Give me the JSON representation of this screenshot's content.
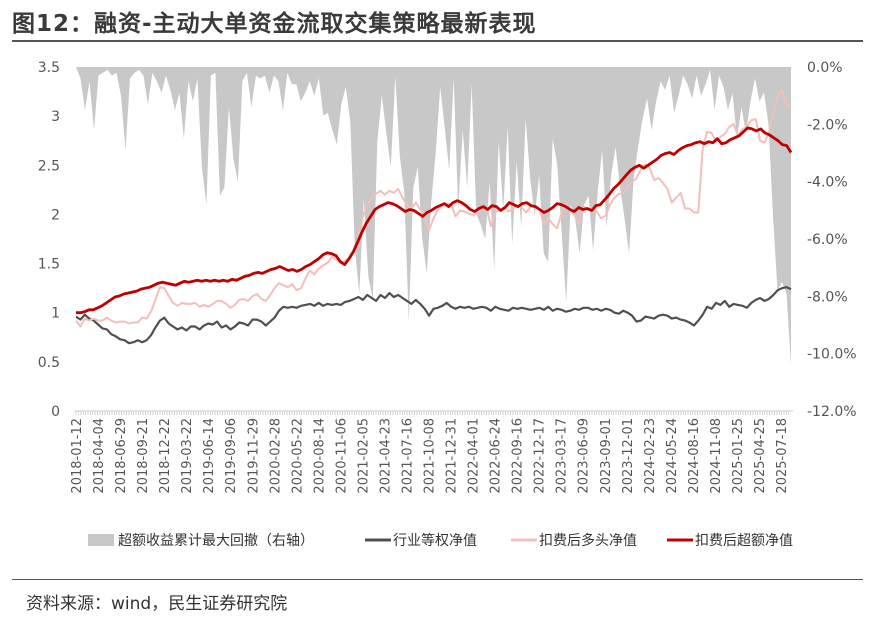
{
  "title": "图12：融资-主动大单资金流取交集策略最新表现",
  "source": "资料来源：wind，民生证券研究院",
  "chart_data": {
    "type": "line",
    "left_axis": {
      "ticks": [
        "0",
        "0.5",
        "1",
        "1.5",
        "2",
        "2.5",
        "3",
        "3.5"
      ],
      "ylim": [
        0,
        3.5
      ]
    },
    "right_axis": {
      "ticks": [
        "-12.0%",
        "-10.0%",
        "-8.0%",
        "-6.0%",
        "-4.0%",
        "-2.0%",
        "0.0%"
      ],
      "ylim": [
        -12.0,
        0.0
      ]
    },
    "x_ticks": [
      "2018-01-12",
      "2018-04-04",
      "2018-06-29",
      "2018-09-21",
      "2018-12-22",
      "2019-03-22",
      "2019-06-14",
      "2019-09-06",
      "2019-11-29",
      "2020-02-28",
      "2020-05-22",
      "2020-08-14",
      "2020-11-06",
      "2021-02-05",
      "2021-04-23",
      "2021-07-16",
      "2021-10-08",
      "2021-12-31",
      "2022-04-01",
      "2022-06-24",
      "2022-09-16",
      "2022-12-17",
      "2023-03-17",
      "2023-06-09",
      "2023-09-01",
      "2023-12-01",
      "2024-02-23",
      "2024-05-24",
      "2024-08-16",
      "2024-11-08",
      "2025-01-25",
      "2025-04-25",
      "2025-07-18"
    ],
    "series": [
      {
        "name": "超额收益累计最大回撤（右轴）",
        "type": "area",
        "axis": "right",
        "color": "#c8c8c8",
        "values": [
          0.0,
          -0.4,
          -1.5,
          -0.5,
          -2.2,
          -0.3,
          -0.2,
          -0.1,
          -0.3,
          -0.2,
          -1.0,
          -2.9,
          -0.4,
          -0.2,
          -0.1,
          -0.3,
          -1.3,
          -0.2,
          -0.5,
          -0.9,
          -0.3,
          -0.8,
          -1.5,
          -0.9,
          -2.5,
          -0.5,
          -1.2,
          -0.4,
          -3.5,
          -4.8,
          -0.3,
          -0.2,
          -4.5,
          -4.2,
          -1.4,
          -3.2,
          -4.0,
          -0.5,
          -0.2,
          -1.4,
          -0.3,
          -0.4,
          -0.3,
          -0.9,
          -0.3,
          -0.5,
          -1.5,
          -0.2,
          -0.6,
          -0.6,
          -1.2,
          -0.9,
          -0.5,
          -1.0,
          -0.4,
          -1.7,
          -1.6,
          -2.2,
          -2.7,
          -1.3,
          -0.7,
          -1.9,
          -6.3,
          -7.9,
          -4.6,
          -7.3,
          -8.1,
          -2.6,
          -1.0,
          -2.3,
          -3.5,
          -0.3,
          -3.1,
          -4.4,
          -8.9,
          -4.2,
          -3.5,
          -6.0,
          -7.2,
          -4.7,
          -3.0,
          -0.7,
          -2.1,
          -3.6,
          -0.4,
          -5.0,
          -2.2,
          -4.2,
          -0.6,
          -5.1,
          -5.5,
          -6.0,
          -4.0,
          -7.1,
          -2.6,
          -5.0,
          -2.1,
          -6.2,
          -3.3,
          -5.6,
          -1.8,
          -3.9,
          -5.2,
          -3.8,
          -6.5,
          -6.8,
          -2.5,
          -3.4,
          -5.8,
          -8.2,
          -4.8,
          -5.3,
          -6.5,
          -4.8,
          -4.5,
          -6.4,
          -4.4,
          -2.9,
          -5.6,
          -3.8,
          -2.8,
          -4.2,
          -5.3,
          -6.5,
          -3.9,
          -2.8,
          -1.8,
          -1.1,
          -2.2,
          -1.2,
          -0.5,
          -0.8,
          -0.3,
          -1.6,
          -1.0,
          -0.3,
          -0.6,
          -1.1,
          -0.3,
          -1.0,
          -0.6,
          -0.1,
          -1.5,
          -0.3,
          -0.7,
          -1.5,
          -0.9,
          -2.5,
          -1.4,
          -2.3,
          -1.2,
          -0.4,
          -1.2,
          -0.9,
          -2.0,
          -5.2,
          -7.8,
          -7.5,
          -7.9,
          -10.4
        ]
      },
      {
        "name": "行业等权净值",
        "type": "line",
        "axis": "left",
        "color": "#505050",
        "values": [
          0.96,
          0.93,
          0.98,
          0.94,
          0.92,
          0.88,
          0.84,
          0.83,
          0.78,
          0.76,
          0.73,
          0.72,
          0.69,
          0.7,
          0.72,
          0.7,
          0.72,
          0.77,
          0.85,
          0.92,
          0.95,
          0.89,
          0.86,
          0.83,
          0.85,
          0.82,
          0.86,
          0.86,
          0.83,
          0.87,
          0.89,
          0.88,
          0.91,
          0.85,
          0.87,
          0.83,
          0.86,
          0.9,
          0.89,
          0.87,
          0.93,
          0.93,
          0.91,
          0.87,
          0.91,
          0.95,
          1.02,
          1.06,
          1.05,
          1.06,
          1.05,
          1.07,
          1.08,
          1.09,
          1.07,
          1.1,
          1.07,
          1.09,
          1.08,
          1.09,
          1.08,
          1.11,
          1.12,
          1.14,
          1.16,
          1.13,
          1.18,
          1.15,
          1.12,
          1.18,
          1.15,
          1.2,
          1.16,
          1.18,
          1.15,
          1.12,
          1.09,
          1.13,
          1.09,
          1.04,
          0.97,
          1.04,
          1.05,
          1.07,
          1.1,
          1.06,
          1.04,
          1.06,
          1.05,
          1.06,
          1.04,
          1.05,
          1.06,
          1.05,
          1.02,
          1.06,
          1.04,
          1.03,
          1.02,
          1.05,
          1.04,
          1.05,
          1.04,
          1.03,
          1.04,
          1.05,
          1.03,
          1.06,
          1.02,
          1.04,
          1.03,
          1.01,
          1.02,
          1.04,
          1.03,
          1.05,
          1.05,
          1.03,
          1.04,
          1.02,
          1.04,
          1.03,
          1.0,
          0.99,
          1.02,
          1.0,
          0.97,
          0.91,
          0.92,
          0.96,
          0.95,
          0.94,
          0.97,
          0.98,
          0.97,
          0.94,
          0.95,
          0.93,
          0.92,
          0.9,
          0.87,
          0.92,
          0.98,
          1.06,
          1.04,
          1.1,
          1.08,
          1.12,
          1.06,
          1.09,
          1.08,
          1.07,
          1.05,
          1.1,
          1.13,
          1.15,
          1.12,
          1.14,
          1.18,
          1.23,
          1.25,
          1.26,
          1.24
        ]
      },
      {
        "name": "扣费后多头净值",
        "type": "line",
        "axis": "left",
        "color": "#f0c0bc",
        "values": [
          0.92,
          0.86,
          0.94,
          0.92,
          0.94,
          0.92,
          0.92,
          0.95,
          0.92,
          0.9,
          0.91,
          0.91,
          0.89,
          0.9,
          0.9,
          0.95,
          0.94,
          1.01,
          1.13,
          1.26,
          1.25,
          1.17,
          1.1,
          1.07,
          1.1,
          1.09,
          1.09,
          1.1,
          1.06,
          1.08,
          1.06,
          1.09,
          1.12,
          1.12,
          1.09,
          1.05,
          1.08,
          1.13,
          1.14,
          1.12,
          1.17,
          1.19,
          1.14,
          1.12,
          1.18,
          1.25,
          1.3,
          1.28,
          1.26,
          1.29,
          1.23,
          1.25,
          1.35,
          1.43,
          1.39,
          1.45,
          1.48,
          1.51,
          1.57,
          1.54,
          1.5,
          1.53,
          1.55,
          1.63,
          1.78,
          1.98,
          2.09,
          2.18,
          2.21,
          2.24,
          2.2,
          2.24,
          2.22,
          2.26,
          2.17,
          2.1,
          2.06,
          2.12,
          2.05,
          1.98,
          1.84,
          1.96,
          2.05,
          2.09,
          2.11,
          2.1,
          1.98,
          2.04,
          2.03,
          2.01,
          1.99,
          2.02,
          2.04,
          2.07,
          1.88,
          2.02,
          2.05,
          2.07,
          2.03,
          2.06,
          2.09,
          2.07,
          2.02,
          2.08,
          2.09,
          2.05,
          1.9,
          1.96,
          1.9,
          1.86,
          2.01,
          2.11,
          2.04,
          1.99,
          1.89,
          2.08,
          2.04,
          2.08,
          2.03,
          1.96,
          1.99,
          2.1,
          2.17,
          2.21,
          2.21,
          2.29,
          2.33,
          2.37,
          2.46,
          2.51,
          2.47,
          2.35,
          2.37,
          2.32,
          2.26,
          2.12,
          2.17,
          2.22,
          2.06,
          2.06,
          2.02,
          2.02,
          2.67,
          2.84,
          2.83,
          2.74,
          2.79,
          2.82,
          2.89,
          2.92,
          2.8,
          2.87,
          2.89,
          2.96,
          2.97,
          2.75,
          2.73,
          2.83,
          3.02,
          3.21,
          3.26,
          3.1,
          3.11
        ]
      },
      {
        "name": "扣费后超额净值",
        "type": "line",
        "axis": "left",
        "color": "#c00000",
        "values": [
          1.0,
          1.0,
          1.01,
          1.03,
          1.03,
          1.05,
          1.07,
          1.1,
          1.13,
          1.16,
          1.17,
          1.19,
          1.2,
          1.21,
          1.22,
          1.24,
          1.25,
          1.26,
          1.28,
          1.3,
          1.31,
          1.3,
          1.29,
          1.28,
          1.3,
          1.32,
          1.31,
          1.32,
          1.33,
          1.32,
          1.33,
          1.32,
          1.33,
          1.32,
          1.33,
          1.32,
          1.34,
          1.33,
          1.35,
          1.37,
          1.38,
          1.4,
          1.41,
          1.4,
          1.42,
          1.44,
          1.45,
          1.47,
          1.45,
          1.43,
          1.44,
          1.42,
          1.44,
          1.47,
          1.49,
          1.52,
          1.55,
          1.59,
          1.61,
          1.6,
          1.58,
          1.52,
          1.49,
          1.55,
          1.62,
          1.72,
          1.82,
          1.91,
          1.98,
          2.05,
          2.08,
          2.1,
          2.12,
          2.11,
          2.09,
          2.06,
          2.03,
          2.05,
          2.04,
          2.01,
          1.98,
          2.02,
          2.04,
          2.07,
          2.09,
          2.11,
          2.08,
          2.12,
          2.14,
          2.12,
          2.09,
          2.05,
          2.03,
          2.06,
          2.08,
          2.05,
          2.09,
          2.08,
          2.04,
          2.07,
          2.12,
          2.1,
          2.08,
          2.11,
          2.12,
          2.09,
          2.08,
          2.05,
          2.02,
          2.04,
          2.07,
          2.11,
          2.1,
          2.08,
          2.05,
          2.03,
          2.07,
          2.05,
          2.06,
          2.04,
          2.09,
          2.1,
          2.15,
          2.2,
          2.26,
          2.3,
          2.35,
          2.4,
          2.45,
          2.48,
          2.5,
          2.47,
          2.5,
          2.53,
          2.56,
          2.6,
          2.62,
          2.63,
          2.61,
          2.65,
          2.68,
          2.7,
          2.71,
          2.73,
          2.74,
          2.72,
          2.74,
          2.73,
          2.77,
          2.72,
          2.73,
          2.76,
          2.78,
          2.8,
          2.84,
          2.88,
          2.87,
          2.85,
          2.87,
          2.83,
          2.81,
          2.78,
          2.75,
          2.71,
          2.7,
          2.63
        ]
      }
    ]
  }
}
